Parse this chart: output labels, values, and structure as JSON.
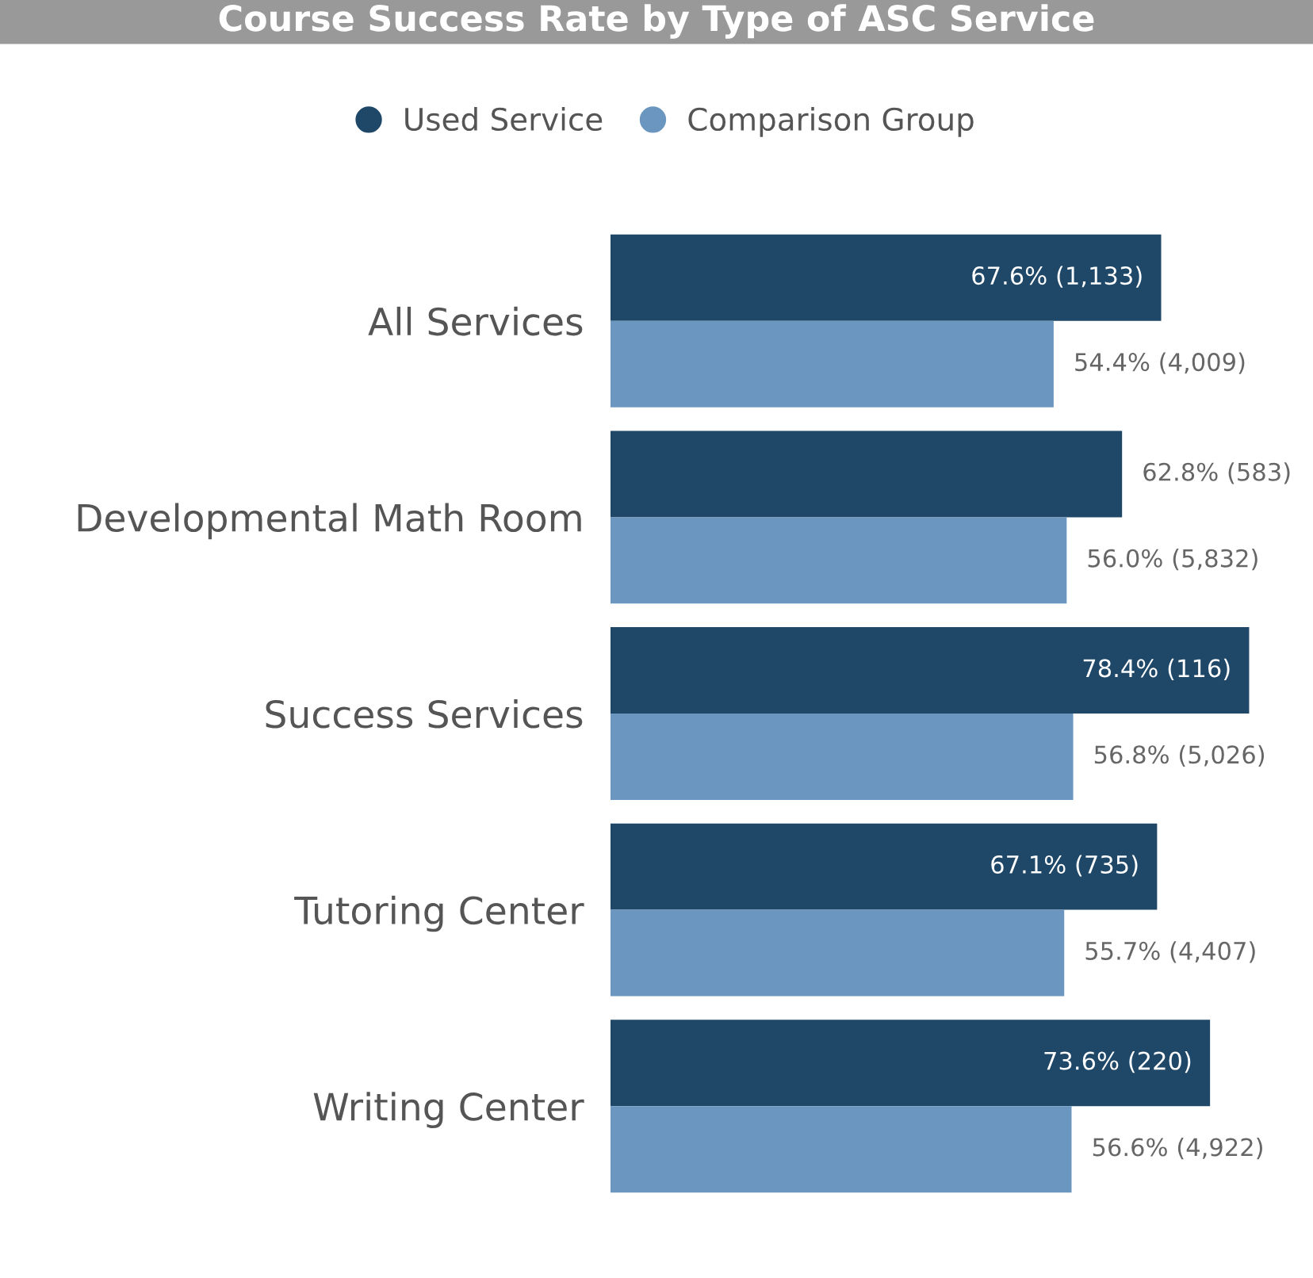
{
  "chart_data": {
    "type": "bar",
    "orientation": "horizontal",
    "title": "Course Success Rate by Type of ASC Service",
    "categories": [
      "All Services",
      "Developmental Math Room",
      "Success Services",
      "Tutoring Center",
      "Writing Center"
    ],
    "series": [
      {
        "name": "Used Service",
        "color": "#1f4868",
        "values": [
          67.6,
          62.8,
          78.4,
          67.1,
          73.6
        ],
        "value_labels": [
          "67.6% (1,133)",
          "62.8% (583)",
          "78.4% (116)",
          "67.1% (735)",
          "73.6% (220)"
        ]
      },
      {
        "name": "Comparison Group",
        "color": "#6a96bf",
        "values": [
          54.4,
          56.0,
          56.8,
          55.7,
          56.6
        ],
        "value_labels": [
          "54.4% (4,009)",
          "56.0% (5,832)",
          "56.8% (5,026)",
          "55.7% (4,407)",
          "56.6% (4,922)"
        ]
      }
    ],
    "legend": "top",
    "marker": "circle",
    "grid": false
  }
}
